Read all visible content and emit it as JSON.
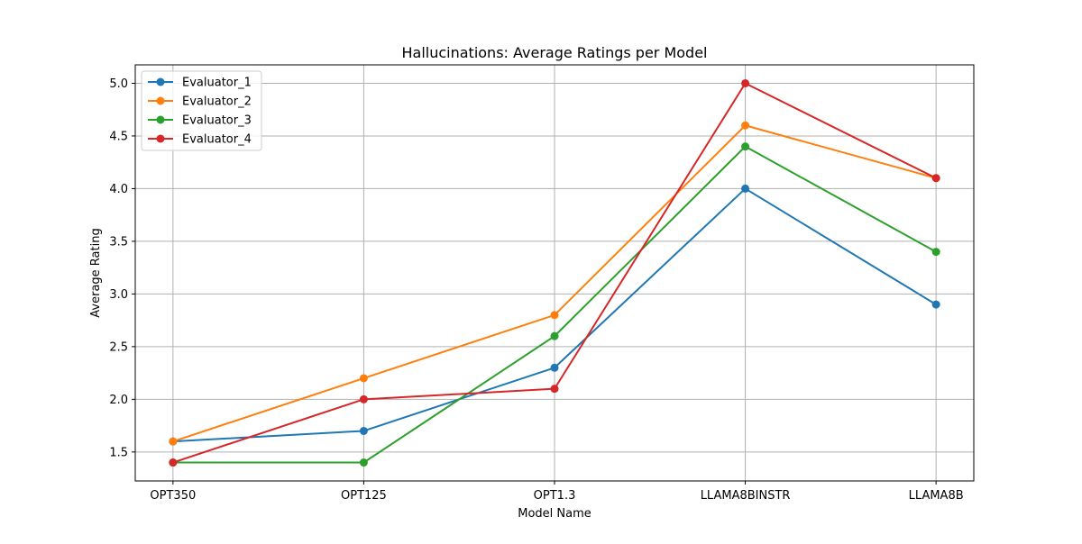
{
  "chart_data": {
    "type": "line",
    "title": "Hallucinations: Average Ratings per Model",
    "xlabel": "Model Name",
    "ylabel": "Average Rating",
    "categories": [
      "OPT350",
      "OPT125",
      "OPT1.3",
      "LLAMA8BINSTR",
      "LLAMA8B"
    ],
    "ylim": [
      1.225,
      5.175
    ],
    "yticks": [
      "1.5",
      "2.0",
      "2.5",
      "3.0",
      "3.5",
      "4.0",
      "4.5",
      "5.0"
    ],
    "grid": true,
    "legend_position": "top-left",
    "series": [
      {
        "name": "Evaluator_1",
        "color": "#1f77b4",
        "values": [
          1.6,
          1.7,
          2.3,
          4.0,
          2.9
        ]
      },
      {
        "name": "Evaluator_2",
        "color": "#ff7f0e",
        "values": [
          1.6,
          2.2,
          2.8,
          4.6,
          4.1
        ]
      },
      {
        "name": "Evaluator_3",
        "color": "#2ca02c",
        "values": [
          1.4,
          1.4,
          2.6,
          4.4,
          3.4
        ]
      },
      {
        "name": "Evaluator_4",
        "color": "#d62728",
        "values": [
          1.4,
          2.0,
          2.1,
          5.0,
          4.1
        ]
      }
    ]
  }
}
